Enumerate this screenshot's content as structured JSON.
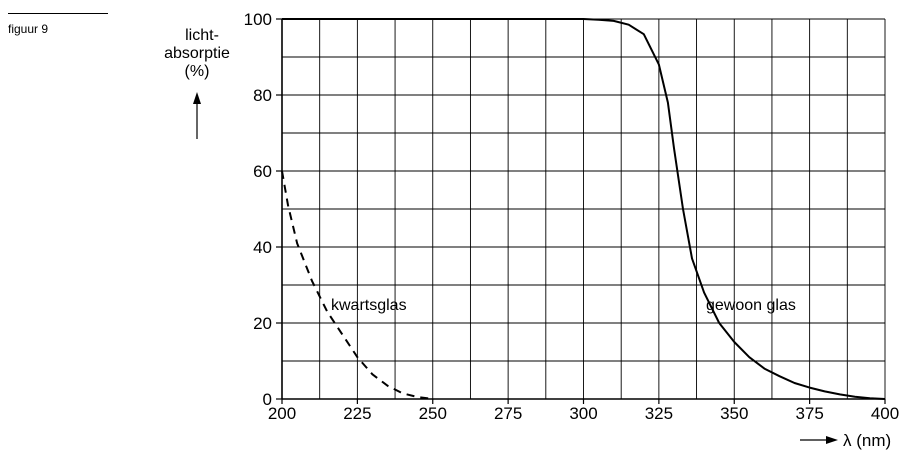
{
  "figure_label": "figuur 9",
  "chart_data": {
    "type": "line",
    "title": "",
    "ylabel": [
      "licht-",
      "absorptie",
      "(%)"
    ],
    "xlabel": "λ (nm)",
    "xlim": [
      200,
      400
    ],
    "ylim": [
      0,
      100
    ],
    "x_ticks": [
      200,
      225,
      250,
      275,
      300,
      325,
      350,
      375,
      400
    ],
    "y_ticks": [
      0,
      20,
      40,
      60,
      80,
      100
    ],
    "grid": true,
    "grid_x_step": 12.5,
    "grid_y_step": 10,
    "series": [
      {
        "name": "kwartsglas",
        "style": "dashed",
        "x": [
          200,
          202,
          205,
          210,
          215,
          220,
          225,
          230,
          235,
          240,
          245,
          250
        ],
        "y": [
          60,
          51,
          41,
          31,
          23,
          17,
          11,
          6.5,
          3.5,
          1.5,
          0.5,
          0
        ]
      },
      {
        "name": "gewoon glas",
        "style": "solid",
        "x": [
          200,
          300,
          305,
          310,
          315,
          320,
          325,
          328,
          330,
          333,
          336,
          340,
          345,
          350,
          355,
          360,
          365,
          370,
          375,
          380,
          385,
          390,
          395,
          400
        ],
        "y": [
          100,
          100,
          99.8,
          99.5,
          98.5,
          96,
          88,
          78,
          66,
          50,
          37,
          28,
          20,
          15,
          11,
          8,
          6,
          4.2,
          3,
          2,
          1.2,
          0.6,
          0.2,
          0
        ]
      }
    ]
  }
}
